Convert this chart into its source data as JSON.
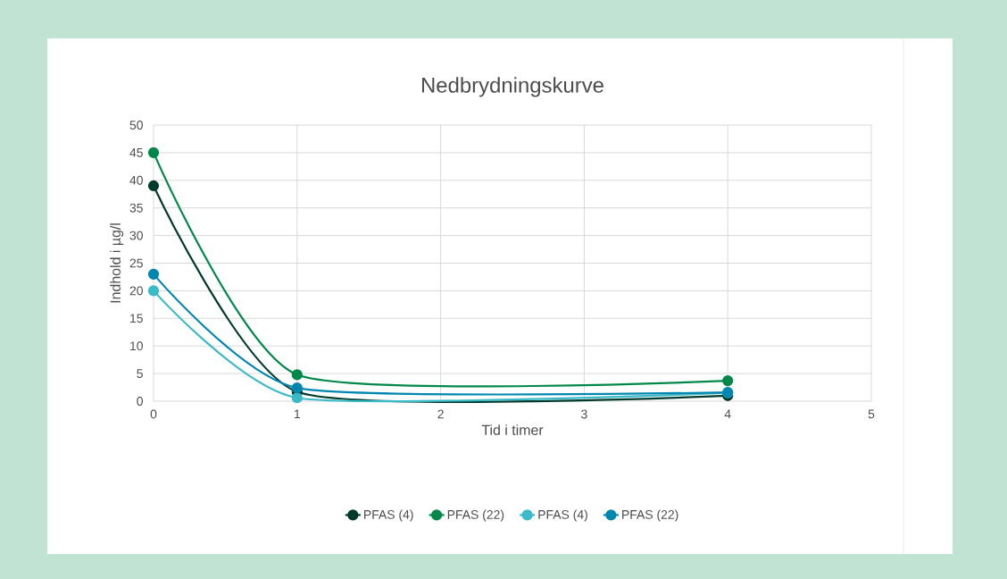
{
  "chart_data": {
    "type": "line",
    "title": "Nedbrydningskurve",
    "xlabel": "Tid i timer",
    "ylabel": "Indhold i µg/l",
    "x": [
      0,
      1,
      4
    ],
    "series": [
      {
        "name": "PFAS (4)",
        "color": "#003a2c",
        "values": [
          39,
          1.7,
          1.0
        ]
      },
      {
        "name": "PFAS (22)",
        "color": "#00884a",
        "values": [
          45,
          4.8,
          3.7
        ]
      },
      {
        "name": "PFAS (4)",
        "color": "#3bbac8",
        "values": [
          20,
          0.6,
          1.5
        ]
      },
      {
        "name": "PFAS (22)",
        "color": "#0087b0",
        "values": [
          23,
          2.4,
          1.6
        ]
      }
    ],
    "xlim": [
      0,
      5
    ],
    "xticks": [
      0,
      1,
      2,
      3,
      4,
      5
    ],
    "ylim": [
      0,
      50
    ],
    "yticks": [
      0,
      5,
      10,
      15,
      20,
      25,
      30,
      35,
      40,
      45,
      50
    ],
    "grid": true,
    "legend": "bottom",
    "marker": "circle",
    "line_style": "solid"
  }
}
